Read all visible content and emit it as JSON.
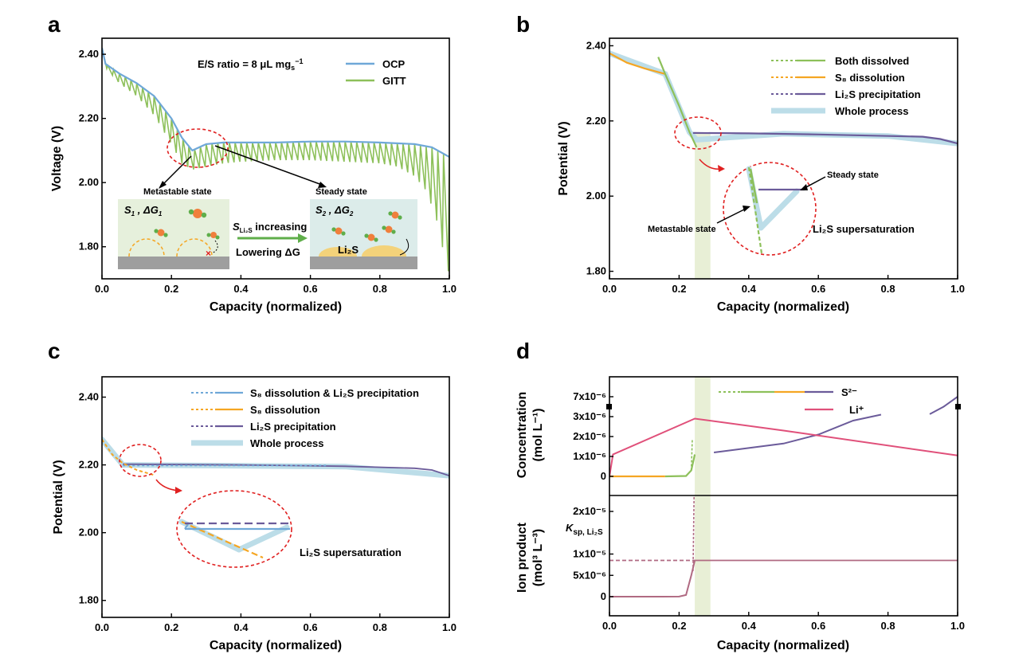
{
  "colors": {
    "ocp": "#6fa8d8",
    "gitt": "#8dc05a",
    "both": "#8dc05a",
    "s8": "#f5a623",
    "li2s": "#6b5b9a",
    "whole": "#bcdde8",
    "li_plus": "#e0507a",
    "ksp": "#b06a82",
    "shade": "#e8efd6",
    "circle": "#e02020",
    "inset_bg": "#e6f0dc",
    "inset_bg2": "#dcecea",
    "substrate": "#9e9e9e",
    "particle_orange": "#f07f3c",
    "particle_green": "#5fae4a"
  },
  "chart_data": [
    {
      "id": "a",
      "type": "line",
      "panel_label": "a",
      "xlabel": "Capacity (normalized)",
      "ylabel": "Voltage (V)",
      "xlim": [
        0,
        1.0
      ],
      "ylim": [
        1.7,
        2.45
      ],
      "xticks": [
        "0.0",
        "0.2",
        "0.4",
        "0.6",
        "0.8",
        "1.0"
      ],
      "xtick_values": [
        0,
        0.2,
        0.4,
        0.6,
        0.8,
        1.0
      ],
      "yticks": [
        "1.80",
        "2.00",
        "2.20",
        "2.40"
      ],
      "ytick_values": [
        1.8,
        2.0,
        2.2,
        2.4
      ],
      "annotation_ratio_prefix": "E/S ratio = 8 μL mg",
      "annotation_ratio_sub": "s",
      "annotation_ratio_sup": "−1",
      "series": [
        {
          "name": "OCP",
          "x": [
            0,
            0.01,
            0.05,
            0.1,
            0.15,
            0.2,
            0.23,
            0.26,
            0.3,
            0.35,
            0.4,
            0.5,
            0.6,
            0.7,
            0.8,
            0.9,
            0.95,
            1.0
          ],
          "y": [
            2.42,
            2.37,
            2.34,
            2.31,
            2.27,
            2.2,
            2.14,
            2.1,
            2.12,
            2.125,
            2.125,
            2.125,
            2.128,
            2.128,
            2.125,
            2.12,
            2.11,
            2.08
          ]
        },
        {
          "name": "GITT",
          "x": [
            0,
            0.01,
            0.05,
            0.1,
            0.15,
            0.2,
            0.23,
            0.26,
            0.3,
            0.35,
            0.4,
            0.5,
            0.6,
            0.7,
            0.8,
            0.85,
            0.9,
            0.93,
            0.96,
            0.98,
            1.0
          ],
          "y": [
            2.42,
            2.36,
            2.31,
            2.27,
            2.21,
            2.12,
            2.06,
            2.04,
            2.05,
            2.06,
            2.065,
            2.07,
            2.07,
            2.065,
            2.06,
            2.05,
            2.02,
            1.98,
            1.9,
            1.8,
            1.71
          ]
        }
      ],
      "inset_labels": {
        "metastable": "Metastable state",
        "steady": "Steady state",
        "s1_left": "S",
        "s1_sub": "1",
        "s1_mid": " , ΔG",
        "s1_sub2": "1",
        "s2_left": "S",
        "s2_sub": "2",
        "s2_mid": " , ΔG",
        "s2_sub2": "2",
        "s_li2s_main": "S",
        "s_li2s_sub": "Li₂S",
        "increasing": " increasing",
        "lowering": "Lowering ΔG",
        "li2s": "Li₂S"
      }
    },
    {
      "id": "b",
      "type": "line",
      "panel_label": "b",
      "xlabel": "Capacity (normalized)",
      "ylabel": "Potential (V)",
      "xlim": [
        0,
        1.0
      ],
      "ylim": [
        1.78,
        2.42
      ],
      "xticks": [
        "0.0",
        "0.2",
        "0.4",
        "0.6",
        "0.8",
        "1.0"
      ],
      "xtick_values": [
        0,
        0.2,
        0.4,
        0.6,
        0.8,
        1.0
      ],
      "yticks": [
        "1.80",
        "2.00",
        "2.20",
        "2.40"
      ],
      "ytick_values": [
        1.8,
        2.0,
        2.2,
        2.4
      ],
      "legend": [
        "Both dissolved",
        "S₈ dissolution",
        "Li₂S precipitation",
        "Whole process"
      ],
      "legend_s8_prefix": "S",
      "legend_s8_sub": "8",
      "legend_s8_suffix": " dissolution",
      "legend_li2s_prefix": "Li",
      "legend_li2s_sub": "2",
      "legend_li2s_suffix": "S precipitation",
      "series": [
        {
          "name": "S₈ dissolution",
          "x": [
            0,
            0.05,
            0.1,
            0.16
          ],
          "y": [
            2.38,
            2.355,
            2.34,
            2.325
          ]
        },
        {
          "name": "Both dissolved",
          "x": [
            0.14,
            0.16,
            0.2,
            0.23,
            0.25
          ],
          "y": [
            2.37,
            2.325,
            2.24,
            2.17,
            2.13
          ]
        },
        {
          "name": "Li₂S precipitation",
          "x": [
            0.24,
            0.4,
            0.6,
            0.8,
            0.9,
            0.95,
            1.0
          ],
          "y": [
            2.168,
            2.167,
            2.164,
            2.16,
            2.158,
            2.152,
            2.14
          ]
        },
        {
          "name": "Whole process",
          "x": [
            0,
            0.16,
            0.23,
            0.25,
            0.5,
            0.8,
            1.0
          ],
          "y": [
            2.38,
            2.325,
            2.17,
            2.15,
            2.166,
            2.16,
            2.14
          ]
        }
      ],
      "shaded_x": [
        0.245,
        0.29
      ],
      "inset_labels": {
        "steady": "Steady state",
        "metastable": "Metastable state",
        "supersat": "Li₂S supersaturation"
      }
    },
    {
      "id": "c",
      "type": "line",
      "panel_label": "c",
      "xlabel": "Capacity (normalized)",
      "ylabel": "Potential (V)",
      "xlim": [
        0,
        1.0
      ],
      "ylim": [
        1.75,
        2.46
      ],
      "xticks": [
        "0.0",
        "0.2",
        "0.4",
        "0.6",
        "0.8",
        "1.0"
      ],
      "xtick_values": [
        0,
        0.2,
        0.4,
        0.6,
        0.8,
        1.0
      ],
      "yticks": [
        "1.80",
        "2.00",
        "2.20",
        "2.40"
      ],
      "ytick_values": [
        1.8,
        2.0,
        2.2,
        2.4
      ],
      "legend": [
        "S₈ dissolution & Li₂S precipitation",
        "S₈ dissolution",
        "Li₂S precipitation",
        "Whole process"
      ],
      "series": [
        {
          "name": "S₈ dissolution",
          "x": [
            0,
            0.03,
            0.06,
            0.1,
            0.15
          ],
          "y": [
            2.275,
            2.23,
            2.205,
            2.185,
            2.17
          ]
        },
        {
          "name": "S₈ dissolution & Li₂S precipitation",
          "x": [
            0.06,
            0.2,
            0.4,
            0.65
          ],
          "y": [
            2.198,
            2.198,
            2.198,
            2.198
          ]
        },
        {
          "name": "Li₂S precipitation",
          "x": [
            0.06,
            0.4,
            0.7,
            0.9,
            0.95,
            1.0
          ],
          "y": [
            2.202,
            2.2,
            2.196,
            2.19,
            2.185,
            2.168
          ]
        },
        {
          "name": "Whole process",
          "x": [
            0,
            0.06,
            0.3,
            0.7,
            1.0
          ],
          "y": [
            2.275,
            2.2,
            2.198,
            2.195,
            2.168
          ]
        }
      ],
      "inset_labels": {
        "supersat": "Li₂S supersaturation"
      }
    },
    {
      "id": "d_top",
      "type": "line",
      "panel_label": "d",
      "xlabel": "",
      "ylabel": "Concentration (mol L⁻¹)",
      "ylabel_line1": "Concentration",
      "ylabel_line2": "(mol L⁻¹)",
      "xlim": [
        0,
        1.0
      ],
      "yticks": [
        "0",
        "1x10⁻⁶",
        "2x10⁻⁶",
        "3x10⁻⁶",
        "7x10⁻⁶"
      ],
      "legend": [
        "S²⁻",
        "Li⁺"
      ],
      "series": [
        {
          "name": "S²⁻",
          "x": [
            0,
            0.15,
            0.22,
            0.235,
            0.245,
            0.3,
            0.5,
            0.6,
            0.7,
            0.78
          ],
          "y": [
            0,
            0,
            0.02,
            0.3,
            1.1,
            1.2,
            1.65,
            2.1,
            2.8,
            3.4
          ]
        },
        {
          "name": "S²⁻ (continued)",
          "x": [
            0.92,
            0.96,
            1.0
          ],
          "y": [
            3.5,
            5.0,
            7.0
          ]
        },
        {
          "name": "Li⁺",
          "x": [
            0,
            0.01,
            0.245,
            0.5,
            1.0
          ],
          "y": [
            0,
            1.1,
            2.9,
            2.3,
            1.05
          ]
        }
      ],
      "shaded_x": [
        0.245,
        0.29
      ]
    },
    {
      "id": "d_bottom",
      "type": "line",
      "xlabel": "Capacity (normalized)",
      "ylabel": "Ion product (mol³ L⁻³)",
      "ylabel_line1": "Ion product",
      "ylabel_line2": "(mol³ L⁻³)",
      "xlim": [
        0,
        1.0
      ],
      "xticks": [
        "0.0",
        "0.2",
        "0.4",
        "0.6",
        "0.8",
        "1.0"
      ],
      "xtick_values": [
        0,
        0.2,
        0.4,
        0.6,
        0.8,
        1.0
      ],
      "yticks": [
        "0",
        "5x10⁻⁶",
        "1x10⁻⁵",
        "2x10⁻⁵"
      ],
      "ksp_label_main": "K",
      "ksp_label_sub": "sp, Li₂S",
      "series": [
        {
          "name": "Ion product",
          "x": [
            0,
            0.15,
            0.2,
            0.22,
            0.235,
            0.245,
            0.3,
            0.5,
            1.0
          ],
          "y": [
            0,
            0,
            0.001,
            0.04,
            0.5,
            0.85,
            0.85,
            0.85,
            0.85
          ]
        },
        {
          "name": "Ksp",
          "x": [
            0,
            1.0
          ],
          "y": [
            0.85,
            0.85
          ]
        }
      ],
      "shaded_x": [
        0.245,
        0.29
      ]
    }
  ]
}
